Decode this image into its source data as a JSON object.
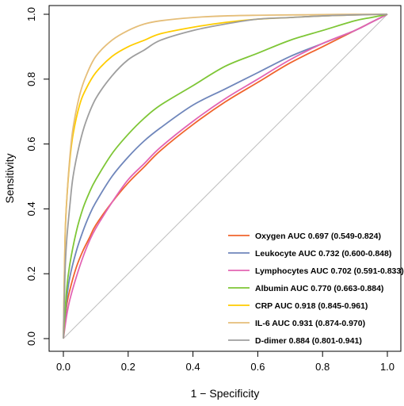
{
  "chart_data": {
    "type": "line",
    "title": "",
    "xlabel": "1 − Specificity",
    "ylabel": "Sensitivity",
    "xlim": [
      0,
      1
    ],
    "ylim": [
      0,
      1
    ],
    "x_ticks": [
      "0.0",
      "0.2",
      "0.4",
      "0.6",
      "0.8",
      "1.0"
    ],
    "y_ticks": [
      "0.0",
      "0.2",
      "0.4",
      "0.6",
      "0.8",
      "1.0"
    ],
    "grid": false,
    "legend_position": "bottom-right",
    "reference_line": {
      "from": [
        0,
        0
      ],
      "to": [
        1,
        1
      ],
      "color": "#BEBEBE"
    },
    "series": [
      {
        "name": "Oxygen AUC 0.697 (0.549-0.824)",
        "color": "#F0642D",
        "x": [
          0,
          0.01,
          0.02,
          0.04,
          0.06,
          0.08,
          0.1,
          0.15,
          0.2,
          0.25,
          0.3,
          0.4,
          0.5,
          0.6,
          0.7,
          0.8,
          0.9,
          0.95,
          1.0
        ],
        "y": [
          0,
          0.1,
          0.15,
          0.22,
          0.27,
          0.31,
          0.35,
          0.42,
          0.48,
          0.53,
          0.58,
          0.66,
          0.73,
          0.79,
          0.85,
          0.9,
          0.95,
          0.975,
          1.0
        ]
      },
      {
        "name": "Leukocyte AUC 0.732 (0.600-0.848)",
        "color": "#6F86BB",
        "x": [
          0,
          0.01,
          0.02,
          0.04,
          0.06,
          0.08,
          0.1,
          0.15,
          0.2,
          0.25,
          0.3,
          0.4,
          0.5,
          0.6,
          0.7,
          0.8,
          0.9,
          0.95,
          1.0
        ],
        "y": [
          0,
          0.12,
          0.19,
          0.27,
          0.33,
          0.38,
          0.42,
          0.5,
          0.56,
          0.61,
          0.65,
          0.72,
          0.77,
          0.82,
          0.87,
          0.91,
          0.95,
          0.975,
          1.0
        ]
      },
      {
        "name": "Lymphocytes AUC 0.702 (0.591-0.833)",
        "color": "#E264B3",
        "x": [
          0,
          0.01,
          0.02,
          0.04,
          0.06,
          0.08,
          0.1,
          0.15,
          0.2,
          0.25,
          0.3,
          0.4,
          0.5,
          0.6,
          0.7,
          0.8,
          0.9,
          0.95,
          1.0
        ],
        "y": [
          0,
          0.07,
          0.12,
          0.19,
          0.25,
          0.3,
          0.34,
          0.42,
          0.49,
          0.54,
          0.59,
          0.67,
          0.74,
          0.8,
          0.86,
          0.91,
          0.95,
          0.975,
          1.0
        ]
      },
      {
        "name": "Albumin AUC 0.770 (0.663-0.884)",
        "color": "#7EC636",
        "x": [
          0,
          0.01,
          0.02,
          0.04,
          0.06,
          0.08,
          0.1,
          0.15,
          0.2,
          0.25,
          0.3,
          0.4,
          0.5,
          0.6,
          0.7,
          0.8,
          0.9,
          0.95,
          1.0
        ],
        "y": [
          0,
          0.15,
          0.23,
          0.33,
          0.4,
          0.45,
          0.49,
          0.57,
          0.63,
          0.68,
          0.72,
          0.78,
          0.84,
          0.88,
          0.92,
          0.95,
          0.98,
          0.99,
          1.0
        ]
      },
      {
        "name": "CRP AUC 0.918 (0.845-0.961)",
        "color": "#FFCC00",
        "x": [
          0,
          0.005,
          0.01,
          0.02,
          0.03,
          0.05,
          0.07,
          0.1,
          0.15,
          0.2,
          0.25,
          0.3,
          0.4,
          0.5,
          0.6,
          0.7,
          0.8,
          0.9,
          1.0
        ],
        "y": [
          0,
          0.3,
          0.42,
          0.55,
          0.63,
          0.72,
          0.77,
          0.82,
          0.87,
          0.9,
          0.92,
          0.94,
          0.96,
          0.975,
          0.985,
          0.99,
          0.995,
          0.998,
          1.0
        ]
      },
      {
        "name": "IL-6 AUC 0.931 (0.874-0.970)",
        "color": "#E5BE79",
        "x": [
          0,
          0.005,
          0.01,
          0.02,
          0.03,
          0.05,
          0.07,
          0.1,
          0.15,
          0.2,
          0.25,
          0.3,
          0.4,
          0.5,
          0.6,
          0.7,
          0.8,
          0.9,
          1.0
        ],
        "y": [
          0,
          0.3,
          0.42,
          0.56,
          0.65,
          0.75,
          0.81,
          0.87,
          0.92,
          0.95,
          0.97,
          0.98,
          0.99,
          0.995,
          0.997,
          0.998,
          0.999,
          1.0,
          1.0
        ]
      },
      {
        "name": "D-dimer 0.884 (0.801-0.941)",
        "color": "#9E9E9E",
        "x": [
          0,
          0.005,
          0.01,
          0.02,
          0.03,
          0.05,
          0.07,
          0.1,
          0.15,
          0.2,
          0.25,
          0.3,
          0.4,
          0.5,
          0.6,
          0.7,
          0.8,
          0.9,
          1.0
        ],
        "y": [
          0,
          0.2,
          0.3,
          0.41,
          0.5,
          0.6,
          0.67,
          0.74,
          0.81,
          0.86,
          0.89,
          0.92,
          0.95,
          0.97,
          0.985,
          0.99,
          0.995,
          0.998,
          1.0
        ]
      }
    ]
  }
}
